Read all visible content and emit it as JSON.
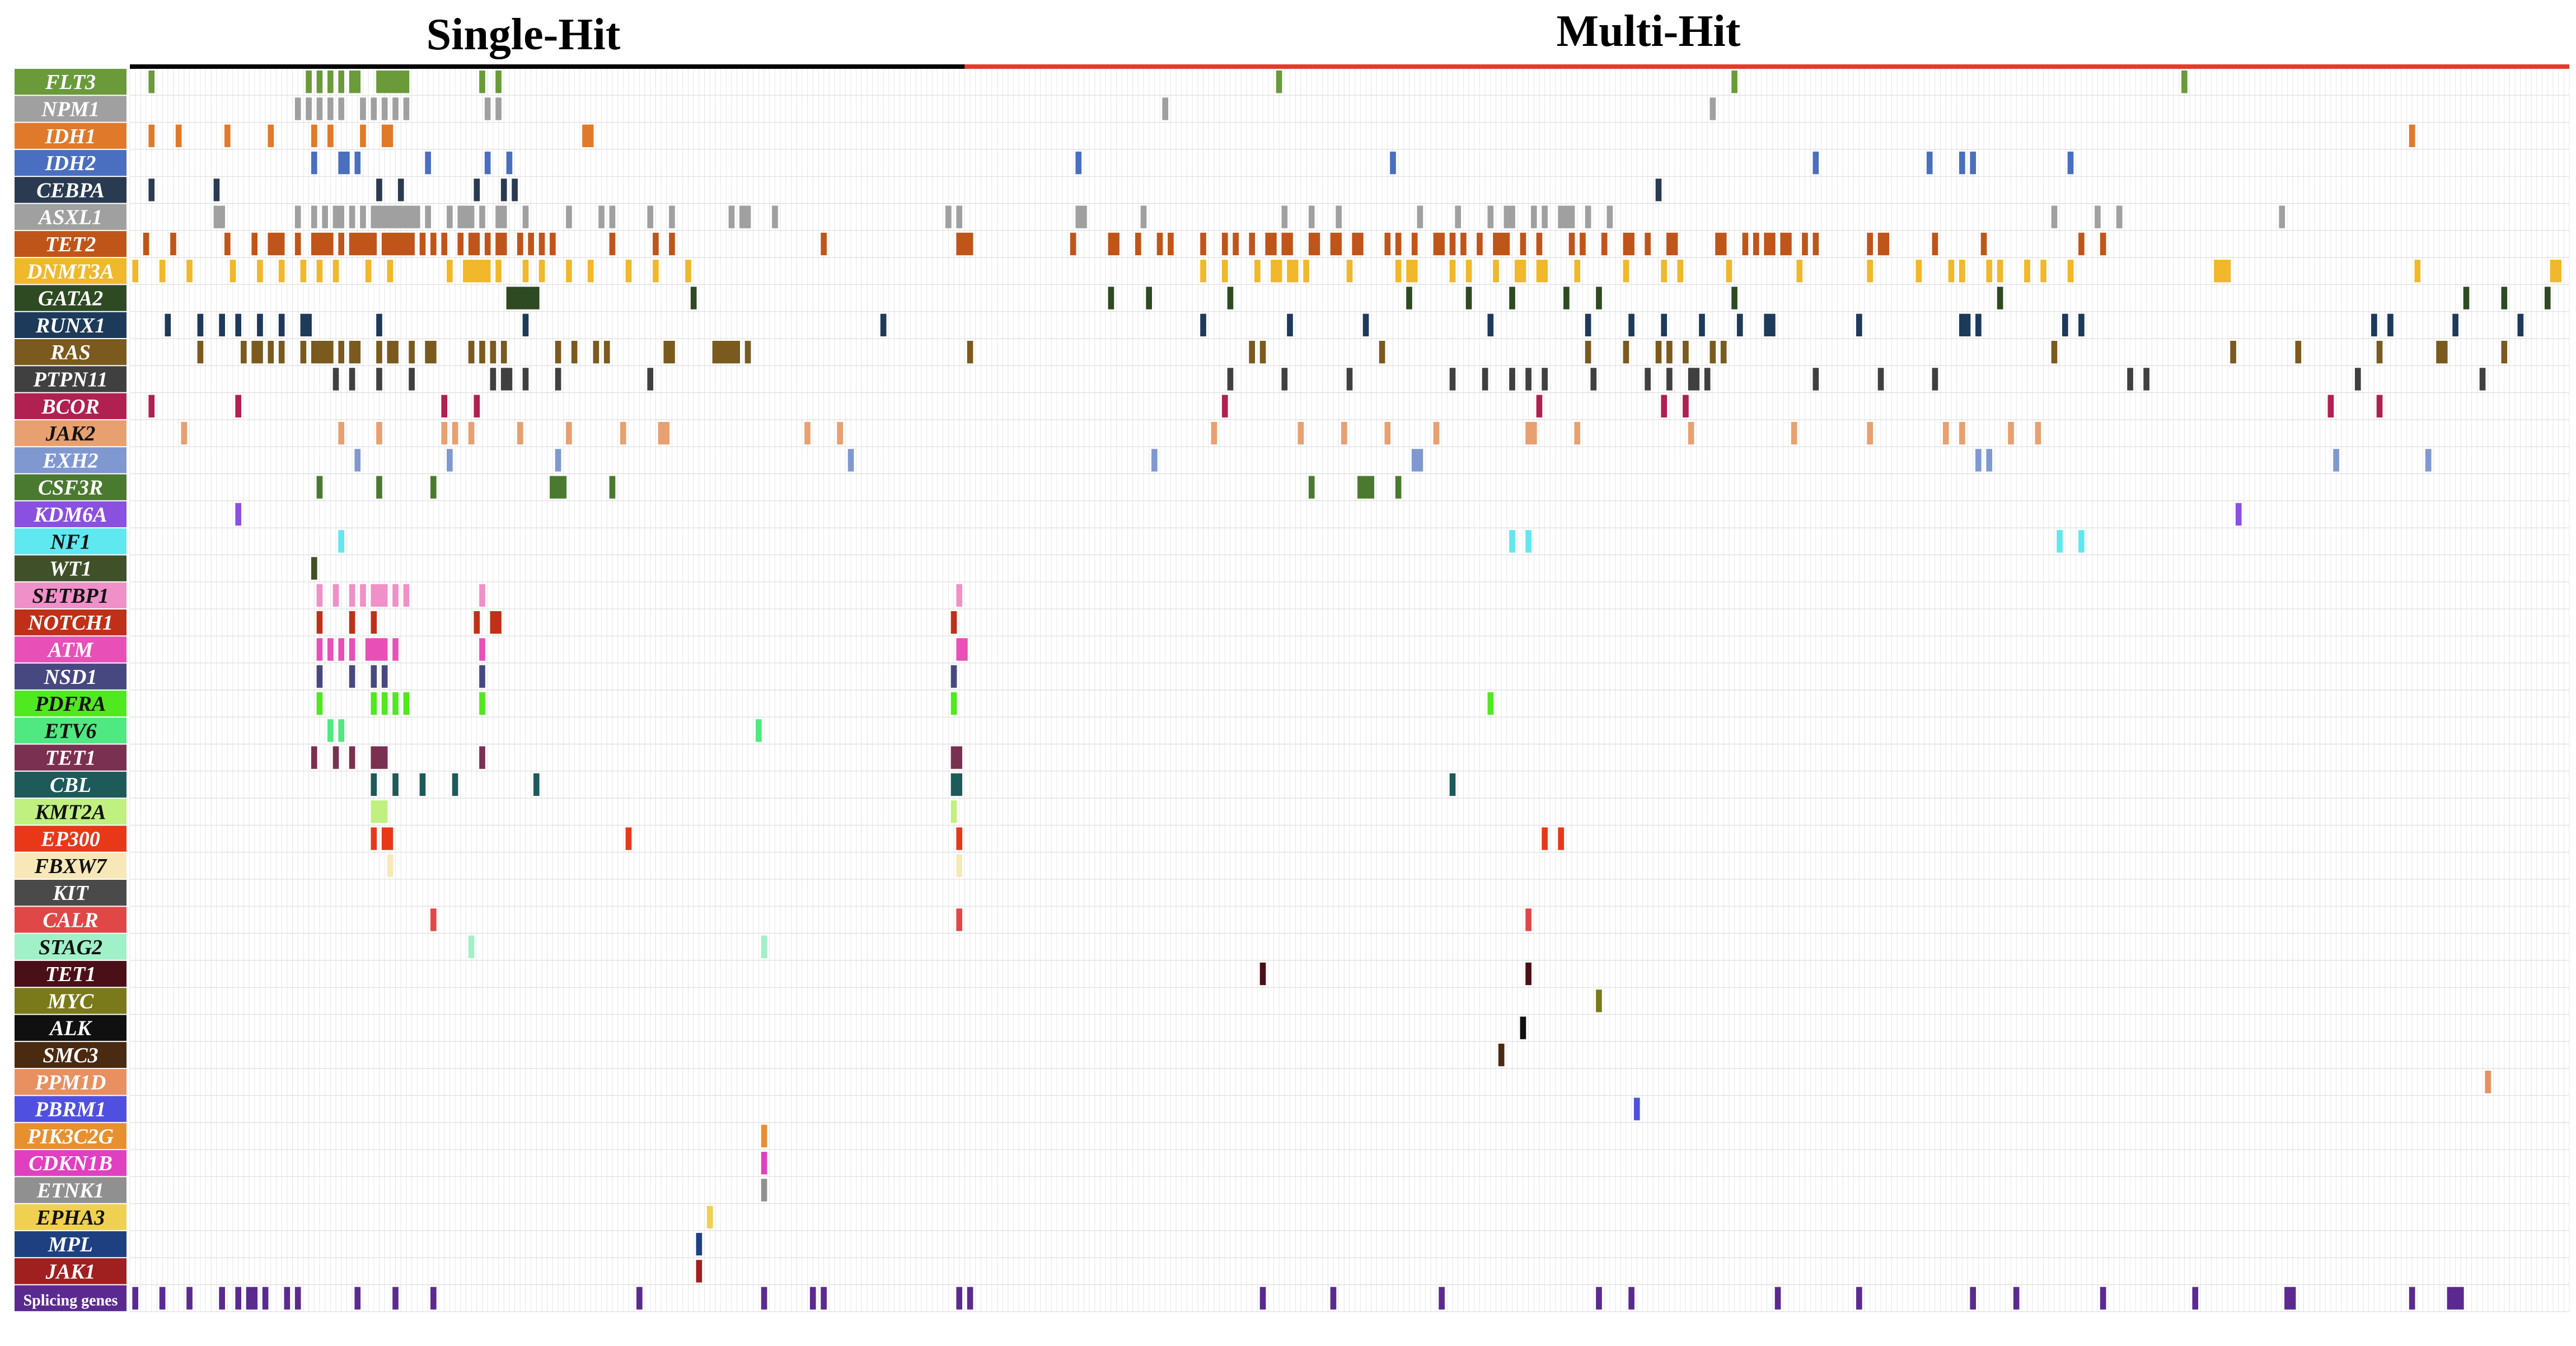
{
  "chart_data": {
    "type": "heatmap",
    "title": "",
    "groups": [
      {
        "label": "Single-Hit",
        "color": "#000000",
        "range": [
          0,
          154
        ]
      },
      {
        "label": "Multi-Hit",
        "color": "#e8392a",
        "range": [
          154,
          450
        ]
      }
    ],
    "n_samples": 450,
    "genes": [
      {
        "name": "FLT3",
        "color": "#6a9a3a",
        "samples": [
          3,
          32,
          34,
          36,
          38,
          40,
          41,
          45,
          46,
          47,
          48,
          49,
          50,
          64,
          67,
          211,
          295,
          378
        ]
      },
      {
        "name": "NPM1",
        "color": "#a0a0a0",
        "samples": [
          30,
          32,
          34,
          36,
          38,
          42,
          44,
          46,
          48,
          50,
          65,
          67,
          190,
          291
        ]
      },
      {
        "name": "IDH1",
        "color": "#e07a2a",
        "samples": [
          3,
          8,
          17,
          25,
          33,
          36,
          42,
          46,
          47,
          83,
          84,
          84,
          420
        ]
      },
      {
        "name": "IDH2",
        "color": "#4a6fc0",
        "samples": [
          33,
          38,
          39,
          41,
          54,
          65,
          69,
          174,
          232,
          310,
          331,
          337,
          339,
          357
        ]
      },
      {
        "name": "CEBPA",
        "color": "#2a3a50",
        "samples": [
          3,
          15,
          45,
          49,
          63,
          68,
          70,
          281
        ]
      },
      {
        "name": "ASXL1",
        "color": "#a0a0a0",
        "samples": [
          15,
          16,
          30,
          33,
          35,
          37,
          38,
          40,
          42,
          44,
          45,
          46,
          47,
          48,
          49,
          50,
          51,
          52,
          54,
          58,
          60,
          61,
          62,
          64,
          67,
          68,
          72,
          80,
          86,
          88,
          95,
          99,
          110,
          112,
          113,
          118,
          150,
          152,
          174,
          175,
          186,
          212,
          217,
          222,
          237,
          244,
          250,
          253,
          254,
          258,
          260,
          263,
          264,
          265,
          268,
          272,
          354,
          362,
          366,
          366,
          396
        ]
      },
      {
        "name": "TET2",
        "color": "#c0551a",
        "samples": [
          2,
          7,
          17,
          22,
          25,
          26,
          27,
          30,
          33,
          34,
          35,
          36,
          38,
          40,
          41,
          42,
          43,
          44,
          46,
          47,
          48,
          49,
          50,
          51,
          53,
          55,
          57,
          60,
          62,
          63,
          65,
          67,
          68,
          71,
          73,
          75,
          77,
          88,
          96,
          99,
          127,
          152,
          153,
          154,
          173,
          180,
          181,
          185,
          189,
          191,
          197,
          201,
          203,
          206,
          209,
          210,
          212,
          213,
          217,
          218,
          221,
          222,
          225,
          226,
          231,
          233,
          236,
          240,
          241,
          243,
          245,
          248,
          251,
          252,
          253,
          256,
          259,
          265,
          267,
          271,
          275,
          276,
          279,
          283,
          284,
          292,
          293,
          297,
          299,
          301,
          302,
          304,
          305,
          308,
          310,
          320,
          322,
          323,
          332,
          341,
          359,
          363
        ]
      },
      {
        "name": "DNMT3A",
        "color": "#f0b82a",
        "samples": [
          0,
          5,
          10,
          18,
          23,
          27,
          31,
          34,
          37,
          43,
          47,
          58,
          61,
          62,
          63,
          64,
          65,
          67,
          72,
          75,
          80,
          84,
          91,
          96,
          102,
          197,
          201,
          207,
          210,
          211,
          213,
          214,
          216,
          224,
          233,
          235,
          236,
          243,
          246,
          251,
          255,
          256,
          259,
          260,
          266,
          275,
          282,
          285,
          294,
          307,
          320,
          329,
          335,
          337,
          342,
          344,
          349,
          349,
          352,
          357,
          384,
          385,
          386,
          421,
          446,
          447
        ]
      },
      {
        "name": "GATA2",
        "color": "#2d4a22",
        "samples": [
          69,
          70,
          71,
          72,
          73,
          74,
          103,
          180,
          187,
          202,
          235,
          246,
          254,
          264,
          270,
          295,
          344,
          430,
          437,
          445
        ]
      },
      {
        "name": "RUNX1",
        "color": "#1e3a5a",
        "samples": [
          6,
          12,
          16,
          19,
          23,
          27,
          31,
          32,
          45,
          72,
          138,
          197,
          213,
          227,
          250,
          268,
          276,
          282,
          289,
          296,
          301,
          302,
          318,
          337,
          338,
          340,
          356,
          359,
          413,
          416,
          428,
          440
        ]
      },
      {
        "name": "RAS",
        "color": "#7a5a1e",
        "samples": [
          12,
          20,
          22,
          23,
          25,
          27,
          31,
          33,
          34,
          35,
          36,
          38,
          40,
          41,
          45,
          47,
          48,
          51,
          54,
          55,
          62,
          64,
          66,
          68,
          78,
          81,
          85,
          87,
          98,
          99,
          107,
          108,
          109,
          110,
          111,
          113,
          154,
          206,
          208,
          230,
          268,
          275,
          281,
          283,
          286,
          291,
          293,
          354,
          387,
          399,
          414,
          425,
          426,
          437
        ]
      },
      {
        "name": "PTPN11",
        "color": "#404040",
        "samples": [
          37,
          40,
          45,
          51,
          66,
          68,
          69,
          72,
          78,
          95,
          202,
          212,
          224,
          243,
          249,
          254,
          257,
          260,
          269,
          279,
          283,
          287,
          288,
          290,
          310,
          322,
          332,
          368,
          371,
          410,
          433
        ]
      },
      {
        "name": "BCOR",
        "color": "#b02050",
        "samples": [
          3,
          19,
          57,
          63,
          201,
          259,
          282,
          286,
          405,
          414
        ]
      },
      {
        "name": "JAK2",
        "color": "#e8a070",
        "samples": [
          9,
          38,
          45,
          57,
          59,
          62,
          71,
          80,
          90,
          97,
          98,
          124,
          130,
          199,
          215,
          223,
          231,
          240,
          257,
          258,
          266,
          287,
          306,
          320,
          334,
          337,
          346,
          351
        ]
      },
      {
        "name": "EXH2",
        "color": "#8098d0",
        "samples": [
          41,
          58,
          78,
          132,
          188,
          236,
          237,
          340,
          342,
          406,
          423
        ]
      },
      {
        "name": "CSF3R",
        "color": "#4a7a30",
        "samples": [
          34,
          45,
          55,
          77,
          78,
          79,
          88,
          217,
          226,
          227,
          228,
          233
        ]
      },
      {
        "name": "KDM6A",
        "color": "#8a50e0",
        "samples": [
          19,
          388
        ]
      },
      {
        "name": "NF1",
        "color": "#60e8f0",
        "samples": [
          38,
          254,
          257,
          355,
          359
        ]
      },
      {
        "name": "WT1",
        "color": "#405028",
        "samples": [
          33
        ]
      },
      {
        "name": "SETBP1",
        "color": "#f090c8",
        "samples": [
          34,
          37,
          40,
          42,
          44,
          45,
          46,
          48,
          50,
          64,
          152
        ]
      },
      {
        "name": "NOTCH1",
        "color": "#c03018",
        "samples": [
          34,
          40,
          44,
          63,
          66,
          67,
          151
        ]
      },
      {
        "name": "ATM",
        "color": "#e850b8",
        "samples": [
          34,
          36,
          38,
          40,
          43,
          44,
          45,
          46,
          48,
          64,
          152,
          153
        ]
      },
      {
        "name": "NSD1",
        "color": "#484880",
        "samples": [
          34,
          40,
          44,
          46,
          64,
          151
        ]
      },
      {
        "name": "PDFRA",
        "color": "#50e820",
        "samples": [
          34,
          44,
          46,
          48,
          50,
          64,
          151,
          250
        ]
      },
      {
        "name": "ETV6",
        "color": "#50e880",
        "samples": [
          36,
          38,
          115
        ]
      },
      {
        "name": "TET1",
        "color": "#7a3050",
        "samples": [
          33,
          37,
          40,
          44,
          45,
          46,
          64,
          151,
          152
        ]
      },
      {
        "name": "CBL",
        "color": "#1e5a5a",
        "samples": [
          44,
          48,
          53,
          59,
          74,
          151,
          152,
          243
        ]
      },
      {
        "name": "KMT2A",
        "color": "#c0f080",
        "samples": [
          44,
          45,
          46,
          151
        ]
      },
      {
        "name": "EP300",
        "color": "#e83818",
        "samples": [
          44,
          46,
          47,
          91,
          152,
          260,
          263
        ]
      },
      {
        "name": "FBXW7",
        "color": "#f8e8b8",
        "samples": [
          47,
          152
        ]
      },
      {
        "name": "KIT",
        "color": "#4a4a4a",
        "samples": []
      },
      {
        "name": "CALR",
        "color": "#e04848",
        "samples": [
          55,
          152,
          257
        ]
      },
      {
        "name": "STAG2",
        "color": "#a0f0c8",
        "samples": [
          62,
          116
        ]
      },
      {
        "name": "TET1",
        "color": "#4a1018",
        "samples": [
          208,
          257
        ]
      },
      {
        "name": "MYC",
        "color": "#7a7a1a",
        "samples": [
          270
        ]
      },
      {
        "name": "ALK",
        "color": "#101010",
        "samples": [
          256
        ]
      },
      {
        "name": "SMC3",
        "color": "#4a2a10",
        "samples": [
          252
        ]
      },
      {
        "name": "PPM1D",
        "color": "#e89060",
        "samples": [
          434
        ]
      },
      {
        "name": "PBRM1",
        "color": "#5050e0",
        "samples": [
          277
        ]
      },
      {
        "name": "PIK3C2G",
        "color": "#e89030",
        "samples": [
          116
        ]
      },
      {
        "name": "CDKN1B",
        "color": "#e040c0",
        "samples": [
          116
        ]
      },
      {
        "name": "ETNK1",
        "color": "#909090",
        "samples": [
          116
        ]
      },
      {
        "name": "EPHA3",
        "color": "#f0d050",
        "samples": [
          106
        ]
      },
      {
        "name": "MPL",
        "color": "#1e4080",
        "samples": [
          104
        ]
      },
      {
        "name": "JAK1",
        "color": "#a02020",
        "samples": [
          104
        ]
      },
      {
        "name": "Splicing genes",
        "color": "#5a2a90",
        "samples": [
          0,
          5,
          10,
          16,
          19,
          21,
          22,
          24,
          28,
          30,
          41,
          48,
          55,
          93,
          116,
          125,
          127,
          152,
          154,
          208,
          221,
          241,
          270,
          276,
          303,
          318,
          339,
          347,
          363,
          380,
          397,
          398,
          420,
          427,
          428,
          429
        ]
      }
    ]
  }
}
